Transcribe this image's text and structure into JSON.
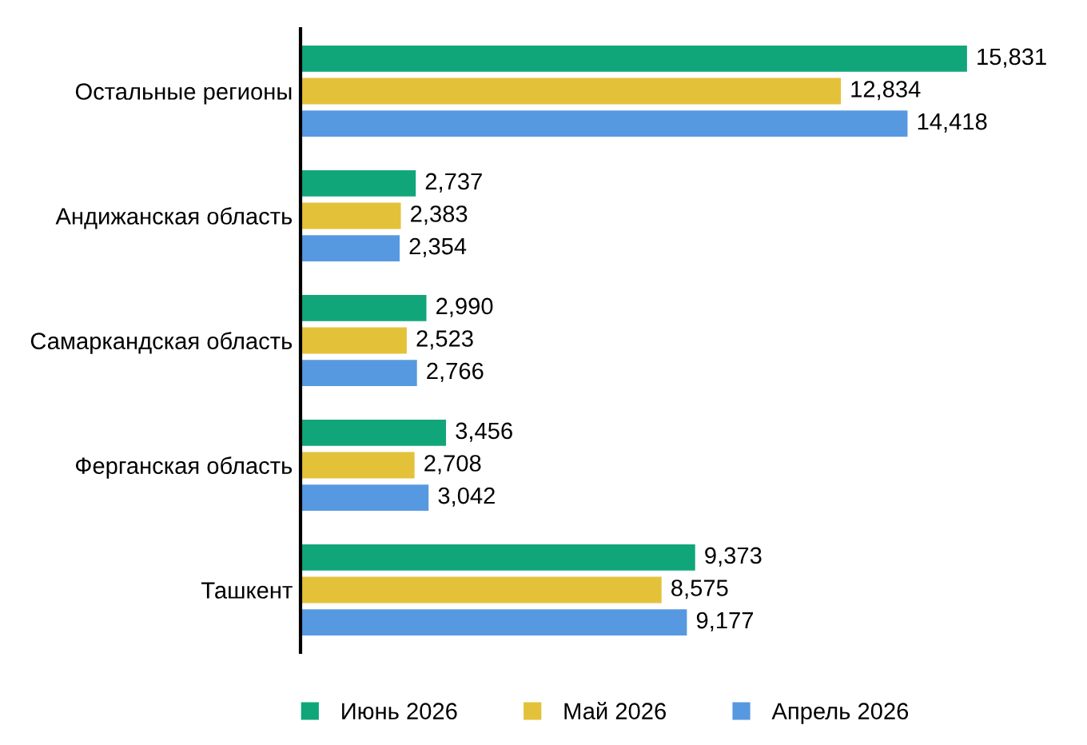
{
  "chart_data": {
    "type": "bar",
    "orientation": "horizontal",
    "categories": [
      "Остальные регионы",
      "Андижанская область",
      "Самаркандская область",
      "Ферганская область",
      "Ташкент"
    ],
    "series": [
      {
        "name": "Июнь 2026",
        "color": "#11a67a",
        "values": [
          15831,
          2737,
          2990,
          3456,
          9373
        ],
        "value_labels": [
          "15,831",
          "2,737",
          "2,990",
          "3,456",
          "9,373"
        ]
      },
      {
        "name": "Май 2026",
        "color": "#e3c23a",
        "values": [
          12834,
          2383,
          2523,
          2708,
          8575
        ],
        "value_labels": [
          "12,834",
          "2,383",
          "2,523",
          "2,708",
          "8,575"
        ]
      },
      {
        "name": "Апрель 2026",
        "color": "#5799e0",
        "values": [
          14418,
          2354,
          2766,
          3042,
          9177
        ],
        "value_labels": [
          "14,418",
          "2,354",
          "2,766",
          "3,042",
          "9,177"
        ]
      }
    ],
    "tick_labels": "y",
    "grid": false,
    "legend": "bottom"
  }
}
